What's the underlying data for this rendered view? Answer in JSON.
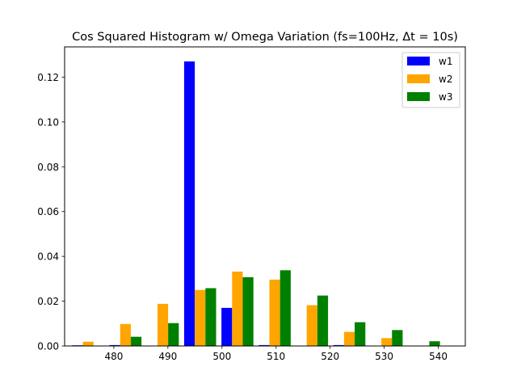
{
  "chart_data": {
    "type": "bar",
    "title": "Cos Squared Histogram w/ Omega Variation (fs=100Hz, Δt = 10s)",
    "xlabel": "",
    "ylabel": "",
    "xlim": [
      470.9,
      545.0
    ],
    "ylim": [
      0,
      0.1335
    ],
    "xticks": [
      480,
      490,
      500,
      510,
      520,
      530,
      540
    ],
    "yticks": [
      0.0,
      0.02,
      0.04,
      0.06,
      0.08,
      0.1,
      0.12
    ],
    "xtick_labels": [
      "480",
      "490",
      "500",
      "510",
      "520",
      "530",
      "540"
    ],
    "ytick_labels": [
      "0.00",
      "0.02",
      "0.04",
      "0.06",
      "0.08",
      "0.10",
      "0.12"
    ],
    "bin_edges": [
      472.3,
      479.2,
      486.1,
      493.0,
      499.9,
      506.8,
      513.7,
      520.6,
      527.5,
      534.4,
      541.3
    ],
    "series": [
      {
        "name": "w1",
        "color": "#0000ff",
        "values": [
          0.0003,
          0.0004,
          0.0,
          0.127,
          0.017,
          0.0004,
          0.0,
          0.0004,
          0.0,
          0.0
        ]
      },
      {
        "name": "w2",
        "color": "#ffa500",
        "values": [
          0.0019,
          0.0098,
          0.0188,
          0.025,
          0.0332,
          0.0296,
          0.0182,
          0.0063,
          0.0035,
          0.0
        ]
      },
      {
        "name": "w3",
        "color": "#008000",
        "values": [
          0.0,
          0.0041,
          0.0102,
          0.0258,
          0.0307,
          0.0338,
          0.0225,
          0.0106,
          0.0071,
          0.0021
        ]
      }
    ],
    "grid": false,
    "legend_position": "top-right"
  }
}
